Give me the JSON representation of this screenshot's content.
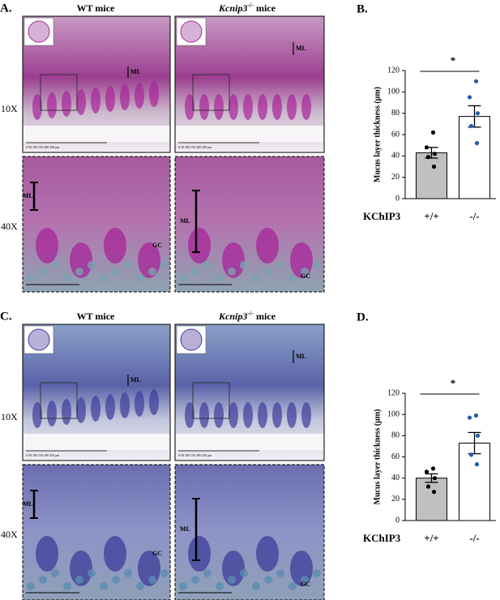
{
  "figure": {
    "panels": [
      {
        "label": "A.",
        "wt": "WT mice",
        "ko": {
          "gene": "Kcnip3",
          "genotype": "-/-",
          "suffix": "mice"
        },
        "rows": [
          "10X",
          "40X"
        ],
        "ml": "ML",
        "gc": "GC",
        "scale_bar": "0   50  100  150  200  250 μm"
      },
      {
        "label": "C.",
        "wt": "WT mice",
        "ko": {
          "gene": "Kcnip3",
          "genotype": "-/-",
          "suffix": "mice"
        },
        "rows": [
          "10X",
          "40X"
        ],
        "ml": "ML",
        "gc": "GC",
        "scale_bar": "0   50  100  150  200  250 μm"
      }
    ]
  },
  "chart_data": [
    {
      "type": "bar",
      "panel_label": "B.",
      "ylabel": "Mucus layer thickness (μm)",
      "xlabel": "KChIP3",
      "significance": "*",
      "categories": [
        "+/+",
        "-/-"
      ],
      "values": [
        43,
        77
      ],
      "errors": [
        5,
        10
      ],
      "points": [
        [
          62,
          48,
          42,
          39,
          30
        ],
        [
          110,
          95,
          80,
          68,
          52
        ]
      ],
      "colors": [
        "#c0c0c0",
        "#ffffff"
      ],
      "point_colors": [
        "#000000",
        "#1f5fa8"
      ],
      "ylim": [
        0,
        120
      ],
      "yticks": [
        0,
        20,
        40,
        60,
        80,
        100,
        120
      ]
    },
    {
      "type": "bar",
      "panel_label": "D.",
      "ylabel": "Mucus layer thickness (μm)",
      "xlabel": "KChIP3",
      "significance": "*",
      "categories": [
        "+/+",
        "-/-"
      ],
      "values": [
        40,
        73
      ],
      "errors": [
        4,
        10
      ],
      "points": [
        [
          49,
          46,
          40,
          32,
          27
        ],
        [
          99,
          97,
          80,
          62,
          53
        ]
      ],
      "colors": [
        "#c0c0c0",
        "#ffffff"
      ],
      "point_colors": [
        "#000000",
        "#1f5fa8"
      ],
      "ylim": [
        0,
        120
      ],
      "yticks": [
        0,
        20,
        40,
        60,
        80,
        100,
        120
      ]
    }
  ]
}
